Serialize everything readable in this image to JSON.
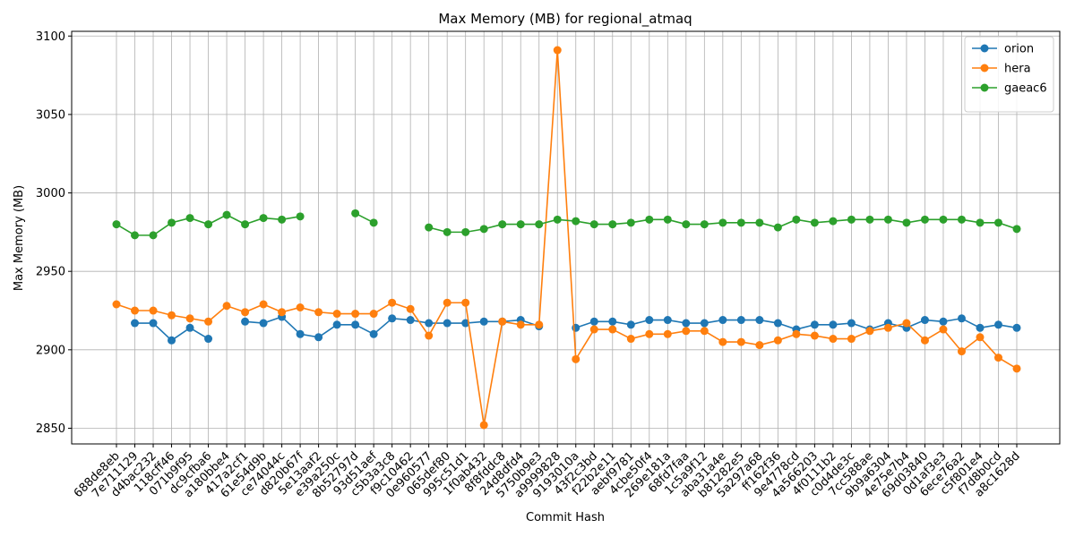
{
  "chart_data": {
    "type": "line",
    "title": "Max Memory (MB) for regional_atmaq",
    "xlabel": "Commit Hash",
    "ylabel": "Max Memory (MB)",
    "ylim": [
      2840,
      3103
    ],
    "yticks": [
      2850,
      2900,
      2950,
      3000,
      3050,
      3100
    ],
    "grid": true,
    "legend_position": "top-right",
    "categories": [
      "688de8eb",
      "7e711129",
      "d4bac232",
      "118cff46",
      "071b9f95",
      "dc9cfba6",
      "a180bbe4",
      "417a2cf1",
      "61e54d9b",
      "ce74044c",
      "d820b67f",
      "5e13aaf2",
      "e39a250c",
      "8b52797d",
      "93d51aef",
      "c5b3a3c8",
      "f9c10462",
      "0e960577",
      "065def80",
      "995c51d1",
      "1f0ab432",
      "8f8fddc8",
      "24d8dfd4",
      "5750b9e3",
      "a9999828",
      "9193010a",
      "43f2c3bd",
      "f22b2e11",
      "aebf9781",
      "4cbe50f4",
      "269e181a",
      "68fd7faa",
      "1c5a9f12",
      "aba31a4e",
      "b81282e5",
      "5a297a68",
      "ff162f36",
      "9e4778cd",
      "4a566203",
      "4f0111b2",
      "c0d4de3c",
      "7cc588ae",
      "9b9a6304",
      "4e75e7b4",
      "69d03840",
      "0d1af3e3",
      "6ece76a2",
      "c5f801e4",
      "f7d8b0cd",
      "a8c1628d"
    ],
    "series": [
      {
        "name": "orion",
        "color": "#1f77b4",
        "values": [
          null,
          2917,
          2917,
          2906,
          2914,
          2907,
          null,
          2918,
          2917,
          2921,
          2910,
          2908,
          2916,
          2916,
          2910,
          2920,
          2919,
          2917,
          2917,
          2917,
          2918,
          2918,
          2919,
          2915,
          null,
          2914,
          2918,
          2918,
          2916,
          2919,
          2919,
          2917,
          2917,
          2919,
          2919,
          2919,
          2917,
          2913,
          2916,
          2916,
          2917,
          2913,
          2917,
          2914,
          2919,
          2918,
          2920,
          2914,
          2916,
          2914
        ]
      },
      {
        "name": "hera",
        "color": "#ff7f0e",
        "values": [
          2929,
          2925,
          2925,
          2922,
          2920,
          2918,
          2928,
          2924,
          2929,
          2924,
          2927,
          2924,
          2923,
          2923,
          2923,
          2930,
          2926,
          2909,
          2930,
          2930,
          2852,
          2918,
          2916,
          2916,
          3091,
          2894,
          2913,
          2913,
          2907,
          2910,
          2910,
          2912,
          2912,
          2905,
          2905,
          2903,
          2906,
          2910,
          2909,
          2907,
          2907,
          2912,
          2914,
          2917,
          2906,
          2913,
          2899,
          2908,
          2895,
          2888
        ]
      },
      {
        "name": "gaeac6",
        "color": "#2ca02c",
        "values": [
          2980,
          2973,
          2973,
          2981,
          2984,
          2980,
          2986,
          2980,
          2984,
          2983,
          2985,
          null,
          null,
          2987,
          2981,
          null,
          null,
          2978,
          2975,
          2975,
          2977,
          2980,
          2980,
          2980,
          2983,
          2982,
          2980,
          2980,
          2981,
          2983,
          2983,
          2980,
          2980,
          2981,
          2981,
          2981,
          2978,
          2983,
          2981,
          2982,
          2983,
          2983,
          2983,
          2981,
          2983,
          2983,
          2983,
          2981,
          2981,
          2977
        ]
      }
    ]
  }
}
